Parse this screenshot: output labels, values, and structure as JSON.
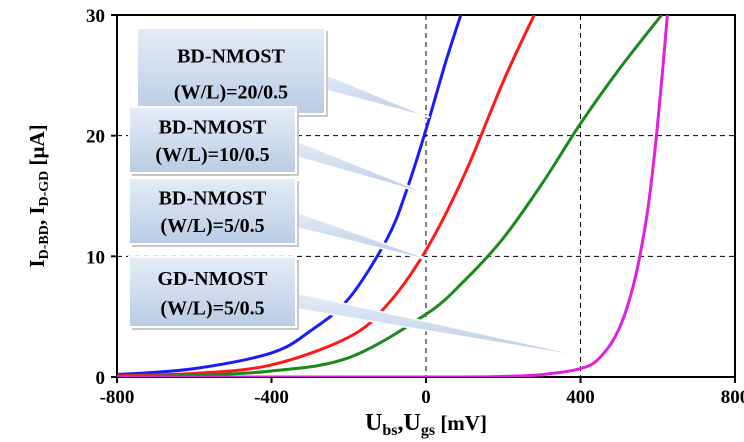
{
  "chart_data": {
    "type": "line",
    "title": "",
    "xlabel": {
      "main": "U",
      "sub1": "bs",
      "sep": ",U",
      "sub2": "gs",
      "unit": " [mV]"
    },
    "ylabel": {
      "main1": "I",
      "sub1": "D-BD",
      "sep": ", I",
      "sub2": "D-GD",
      "unit": " [μA]"
    },
    "xlim": [
      -800,
      800
    ],
    "ylim": [
      0,
      30
    ],
    "xticks": [
      -800,
      -400,
      0,
      400,
      800
    ],
    "yticks": [
      0,
      10,
      20,
      30
    ],
    "grid": {
      "style": "dashed",
      "x": [
        0,
        400
      ],
      "y": [
        10,
        20
      ]
    },
    "legend": "callouts",
    "series": [
      {
        "name": "BD-NMOST (W/L)=20/0.5",
        "line1": "BD-NMOST",
        "line2": "(W/L)=20/0.5",
        "color": "#1a1aff",
        "x": [
          -800,
          -600,
          -400,
          -300,
          -200,
          -100,
          -50,
          0,
          50,
          90
        ],
        "y": [
          0.2,
          0.7,
          2.0,
          3.8,
          6.5,
          11.5,
          15.5,
          20.5,
          26.0,
          30.0
        ]
      },
      {
        "name": "BD-NMOST (W/L)=10/0.5",
        "line1": "BD-NMOST",
        "line2": "(W/L)=10/0.5",
        "color": "#ff1a1a",
        "x": [
          -800,
          -600,
          -400,
          -200,
          -100,
          0,
          100,
          200,
          280
        ],
        "y": [
          0.1,
          0.3,
          1.0,
          3.3,
          6.0,
          10.5,
          16.8,
          24.5,
          30.0
        ]
      },
      {
        "name": "BD-NMOST (W/L)=5/0.5",
        "line1": "BD-NMOST",
        "line2": "(W/L)=5/0.5",
        "color": "#1b8a1b",
        "x": [
          -800,
          -600,
          -400,
          -200,
          0,
          100,
          200,
          300,
          400,
          500,
          610
        ],
        "y": [
          0.05,
          0.15,
          0.5,
          1.6,
          5.2,
          8.0,
          11.5,
          16.0,
          21.0,
          25.5,
          30.0
        ]
      },
      {
        "name": "GD-NMOST (W/L)=5/0.5",
        "line1": "GD-NMOST",
        "line2": "(W/L)=5/0.5",
        "color": "#e020e0",
        "x": [
          -800,
          0,
          200,
          300,
          400,
          450,
          500,
          540,
          570,
          590,
          610,
          625
        ],
        "y": [
          0.0,
          0.0,
          0.05,
          0.2,
          0.7,
          1.6,
          4.0,
          8.0,
          13.0,
          18.0,
          24.5,
          30.0
        ]
      }
    ]
  }
}
